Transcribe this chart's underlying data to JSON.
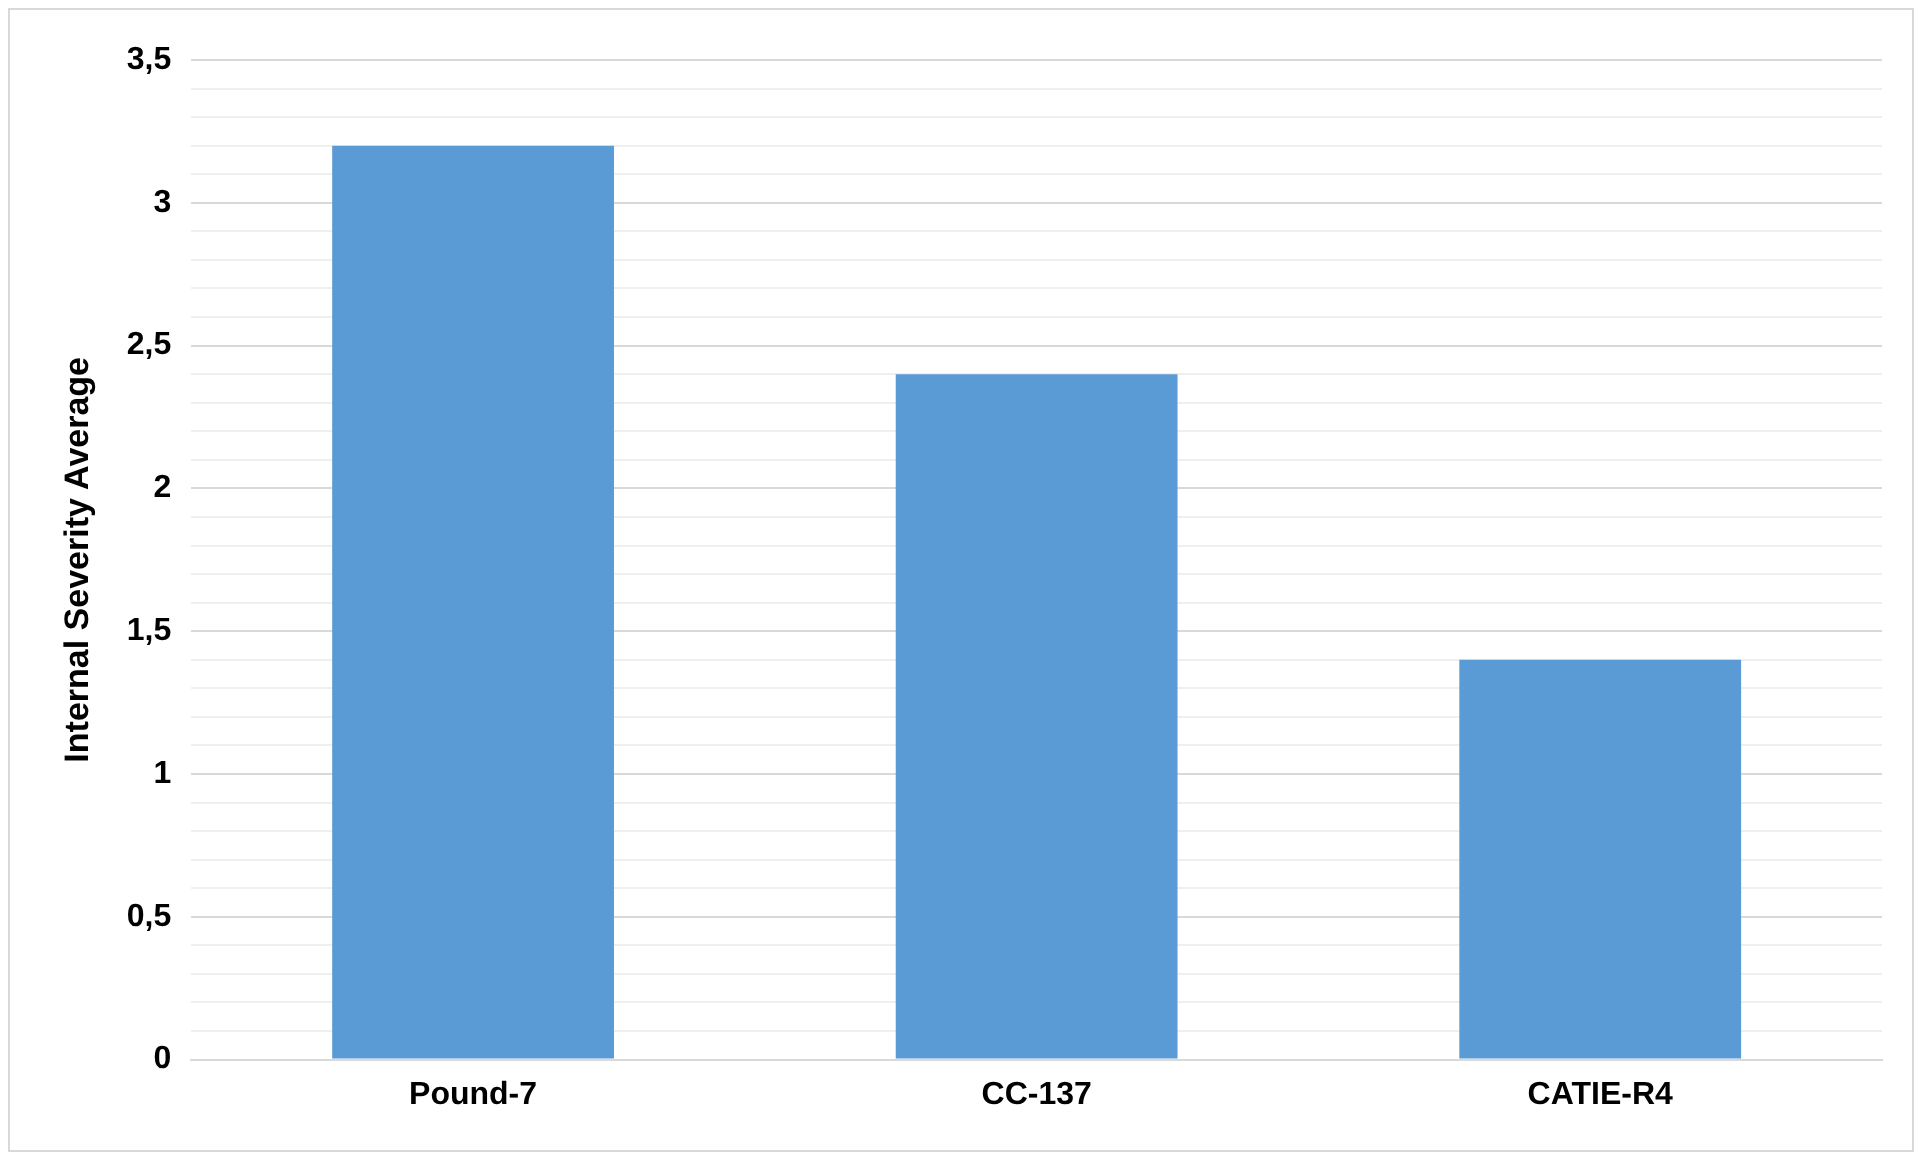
{
  "chart_data": {
    "type": "bar",
    "ylabel": "Internal Severity Average",
    "categories": [
      "Pound-7",
      "CC-137",
      "CATIE-R4"
    ],
    "values": [
      3.2,
      2.4,
      1.4
    ],
    "color": "#5b9bd5",
    "ylim": [
      0,
      3.5
    ],
    "yticks": [
      {
        "value": 0,
        "label": "0"
      },
      {
        "value": 0.1,
        "label": null
      },
      {
        "value": 0.2,
        "label": null
      },
      {
        "value": 0.3,
        "label": null
      },
      {
        "value": 0.4,
        "label": null
      },
      {
        "value": 0.5,
        "label": "0,5"
      },
      {
        "value": 0.6,
        "label": null
      },
      {
        "value": 0.7,
        "label": null
      },
      {
        "value": 0.8,
        "label": null
      },
      {
        "value": 0.9,
        "label": null
      },
      {
        "value": 1,
        "label": "1"
      },
      {
        "value": 1.1,
        "label": null
      },
      {
        "value": 1.2,
        "label": null
      },
      {
        "value": 1.3,
        "label": null
      },
      {
        "value": 1.4,
        "label": null
      },
      {
        "value": 1.5,
        "label": "1,5"
      },
      {
        "value": 1.6,
        "label": null
      },
      {
        "value": 1.7,
        "label": null
      },
      {
        "value": 1.8,
        "label": null
      },
      {
        "value": 1.9,
        "label": null
      },
      {
        "value": 2,
        "label": "2"
      },
      {
        "value": 2.1,
        "label": null
      },
      {
        "value": 2.2,
        "label": null
      },
      {
        "value": 2.3,
        "label": null
      },
      {
        "value": 2.4,
        "label": null
      },
      {
        "value": 2.5,
        "label": "2,5"
      },
      {
        "value": 2.6,
        "label": null
      },
      {
        "value": 2.7,
        "label": null
      },
      {
        "value": 2.8,
        "label": null
      },
      {
        "value": 2.9,
        "label": null
      },
      {
        "value": 3,
        "label": "3"
      },
      {
        "value": 3.1,
        "label": null
      },
      {
        "value": 3.2,
        "label": null
      },
      {
        "value": 3.3,
        "label": null
      },
      {
        "value": 3.4,
        "label": null
      },
      {
        "value": 3.5,
        "label": "3,5"
      }
    ],
    "grid": "y",
    "legend": false
  }
}
